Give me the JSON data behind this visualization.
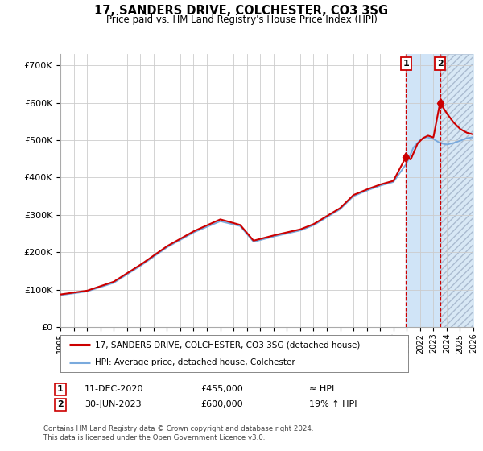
{
  "title": "17, SANDERS DRIVE, COLCHESTER, CO3 3SG",
  "subtitle": "Price paid vs. HM Land Registry's House Price Index (HPI)",
  "ylim": [
    0,
    730000
  ],
  "yticks": [
    0,
    100000,
    200000,
    300000,
    400000,
    500000,
    600000,
    700000
  ],
  "x_start_year": 1995,
  "x_end_year": 2026,
  "hpi_color": "#7aaadd",
  "price_color": "#cc0000",
  "marker1_x": 2020.94,
  "marker1_price": 455000,
  "marker2_x": 2023.5,
  "marker2_price": 600000,
  "legend_line1": "17, SANDERS DRIVE, COLCHESTER, CO3 3SG (detached house)",
  "legend_line2": "HPI: Average price, detached house, Colchester",
  "annotation1_label": "1",
  "annotation1_date": "11-DEC-2020",
  "annotation1_price": "£455,000",
  "annotation1_hpi": "≈ HPI",
  "annotation2_label": "2",
  "annotation2_date": "30-JUN-2023",
  "annotation2_price": "£600,000",
  "annotation2_hpi": "19% ↑ HPI",
  "footer": "Contains HM Land Registry data © Crown copyright and database right 2024.\nThis data is licensed under the Open Government Licence v3.0.",
  "bg": "#ffffff",
  "grid_color": "#cccccc",
  "shade_between_color": "#ddeeff",
  "shade_after_color": "#ddeeff"
}
